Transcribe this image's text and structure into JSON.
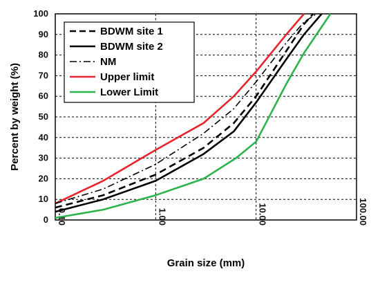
{
  "chart_data": {
    "type": "line",
    "x_scale": "log",
    "xlabel": "Grain size (mm)",
    "ylabel": "Percent by weight (%)",
    "xlim": [
      0.1,
      100
    ],
    "ylim": [
      0,
      100
    ],
    "x_ticks": [
      "0.10",
      "1.00",
      "10.00",
      "100.00"
    ],
    "y_ticks": [
      "0",
      "10",
      "20",
      "30",
      "40",
      "50",
      "60",
      "70",
      "80",
      "90",
      "100"
    ],
    "grid": true,
    "legend_position": "top-left",
    "series": [
      {
        "name": "BDWM site 1",
        "color": "#000000",
        "style": "dashed",
        "points": [
          [
            0.1,
            6
          ],
          [
            0.3,
            12
          ],
          [
            1.0,
            22
          ],
          [
            3.0,
            35
          ],
          [
            6.0,
            47
          ],
          [
            10.0,
            60
          ],
          [
            20.0,
            82
          ],
          [
            30.0,
            95
          ],
          [
            37.0,
            100
          ]
        ]
      },
      {
        "name": "BDWM site 2",
        "color": "#000000",
        "style": "solid",
        "points": [
          [
            0.1,
            4
          ],
          [
            0.3,
            10
          ],
          [
            1.0,
            19
          ],
          [
            3.0,
            32
          ],
          [
            6.0,
            43
          ],
          [
            10.0,
            57
          ],
          [
            20.0,
            78
          ],
          [
            30.0,
            90
          ],
          [
            45.0,
            100
          ]
        ]
      },
      {
        "name": "NM",
        "color": "#000000",
        "style": "dashdot",
        "points": [
          [
            0.1,
            8
          ],
          [
            0.3,
            15
          ],
          [
            1.0,
            27
          ],
          [
            3.0,
            42
          ],
          [
            6.0,
            54
          ],
          [
            10.0,
            67
          ],
          [
            20.0,
            86
          ],
          [
            30.0,
            96
          ],
          [
            40.0,
            100
          ]
        ]
      },
      {
        "name": "Upper limit",
        "color": "#e8232b",
        "style": "solid",
        "points": [
          [
            0.1,
            8
          ],
          [
            0.3,
            19
          ],
          [
            1.0,
            34
          ],
          [
            3.0,
            47
          ],
          [
            6.0,
            60
          ],
          [
            10.0,
            72
          ],
          [
            20.0,
            90
          ],
          [
            30.0,
            100
          ]
        ]
      },
      {
        "name": "Lower Limit",
        "color": "#2db34a",
        "style": "solid",
        "points": [
          [
            0.1,
            1
          ],
          [
            0.3,
            5
          ],
          [
            1.0,
            12
          ],
          [
            3.0,
            20
          ],
          [
            6.3,
            30
          ],
          [
            10.0,
            38
          ],
          [
            20.0,
            66
          ],
          [
            30.0,
            81
          ],
          [
            55.0,
            100
          ]
        ]
      }
    ]
  }
}
